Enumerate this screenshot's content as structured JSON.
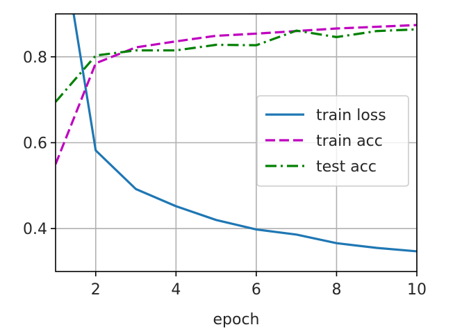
{
  "chart_data": {
    "type": "line",
    "xlabel": "epoch",
    "ylabel": "",
    "xlim": [
      1,
      10
    ],
    "ylim": [
      0.3,
      0.9
    ],
    "xticks": [
      2,
      4,
      6,
      8,
      10
    ],
    "yticks": [
      0.4,
      0.6,
      0.8
    ],
    "xtick_labels": [
      "2",
      "4",
      "6",
      "8",
      "10"
    ],
    "ytick_labels": [
      "0.4",
      "0.6",
      "0.8"
    ],
    "grid": true,
    "legend": "center-right",
    "series": [
      {
        "name": "train loss",
        "color": "#1f77b4",
        "style": "solid",
        "x": [
          1,
          2,
          3,
          4,
          5,
          6,
          7,
          8,
          9,
          10
        ],
        "y": [
          1.16,
          0.582,
          0.492,
          0.452,
          0.42,
          0.398,
          0.386,
          0.366,
          0.355,
          0.347
        ]
      },
      {
        "name": "train acc",
        "color": "#bf00bf",
        "style": "dashed",
        "x": [
          1,
          2,
          3,
          4,
          5,
          6,
          7,
          8,
          9,
          10
        ],
        "y": [
          0.55,
          0.785,
          0.822,
          0.836,
          0.849,
          0.854,
          0.86,
          0.866,
          0.87,
          0.874
        ]
      },
      {
        "name": "test acc",
        "color": "#008000",
        "style": "dashdot",
        "x": [
          1,
          2,
          3,
          4,
          5,
          6,
          7,
          8,
          9,
          10
        ],
        "y": [
          0.695,
          0.803,
          0.815,
          0.815,
          0.828,
          0.827,
          0.861,
          0.846,
          0.86,
          0.864
        ]
      }
    ]
  }
}
